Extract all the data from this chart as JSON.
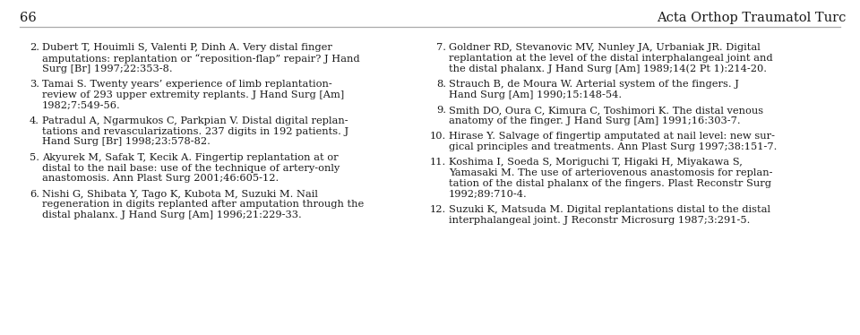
{
  "page_number": "66",
  "header_right": "Acta Orthop Traumatol Turc",
  "background_color": "#ffffff",
  "text_color": "#1a1a1a",
  "header_line_color": "#aaaaaa",
  "header_font_size": 10.5,
  "body_font_size": 8.2,
  "left_column": [
    {
      "number": "2.",
      "lines": [
        "Dubert T, Houimli S, Valenti P, Dinh A. Very distal finger",
        "amputations: replantation or “reposition-flap” repair? J Hand",
        "Surg [Br] 1997;22:353-8."
      ]
    },
    {
      "number": "3.",
      "lines": [
        "Tamai S. Twenty years’ experience of limb replantation-",
        "review of 293 upper extremity replants. J Hand Surg [Am]",
        "1982;7:549-56."
      ]
    },
    {
      "number": "4.",
      "lines": [
        "Patradul A, Ngarmukos C, Parkpian V. Distal digital replan-",
        "tations and revascularizations. 237 digits in 192 patients. J",
        "Hand Surg [Br] 1998;23:578-82."
      ]
    },
    {
      "number": "5.",
      "lines": [
        "Akyurek M, Safak T, Kecik A. Fingertip replantation at or",
        "distal to the nail base: use of the technique of artery-only",
        "anastomosis. Ann Plast Surg 2001;46:605-12."
      ]
    },
    {
      "number": "6.",
      "lines": [
        "Nishi G, Shibata Y, Tago K, Kubota M, Suzuki M. Nail",
        "regeneration in digits replanted after amputation through the",
        "distal phalanx. J Hand Surg [Am] 1996;21:229-33."
      ]
    }
  ],
  "right_column": [
    {
      "number": "7.",
      "lines": [
        "Goldner RD, Stevanovic MV, Nunley JA, Urbaniak JR. Digital",
        "replantation at the level of the distal interphalangeal joint and",
        "the distal phalanx. J Hand Surg [Am] 1989;14(2 Pt 1):214-20."
      ]
    },
    {
      "number": "8.",
      "lines": [
        "Strauch B, de Moura W. Arterial system of the fingers. J",
        "Hand Surg [Am] 1990;15:148-54."
      ]
    },
    {
      "number": "9.",
      "lines": [
        "Smith DO, Oura C, Kimura C, Toshimori K. The distal venous",
        "anatomy of the finger. J Hand Surg [Am] 1991;16:303-7."
      ]
    },
    {
      "number": "10.",
      "lines": [
        "Hirase Y. Salvage of fingertip amputated at nail level: new sur-",
        "gical principles and treatments. Ann Plast Surg 1997;38:151-7."
      ]
    },
    {
      "number": "11.",
      "lines": [
        "Koshima I, Soeda S, Moriguchi T, Higaki H, Miyakawa S,",
        "Yamasaki M. The use of arteriovenous anastomosis for replan-",
        "tation of the distal phalanx of the fingers. Plast Reconstr Surg",
        "1992;89:710-4."
      ]
    },
    {
      "number": "12.",
      "lines": [
        "Suzuki K, Matsuda M. Digital replantations distal to the distal",
        "interphalangeal joint. J Reconstr Microsurg 1987;3:291-5."
      ]
    }
  ]
}
